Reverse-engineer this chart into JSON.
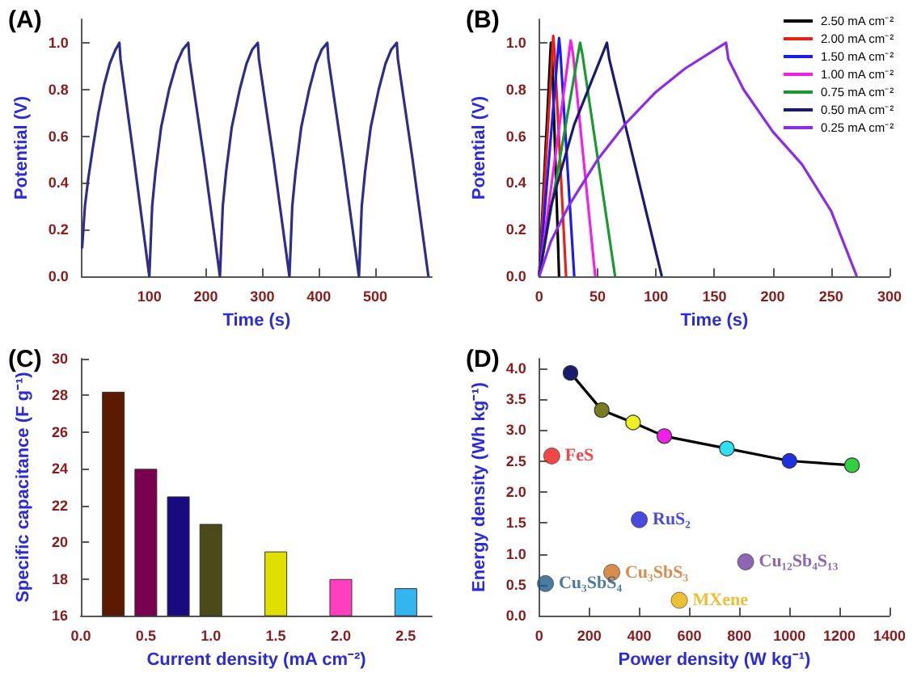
{
  "chart_data": [
    {
      "type": "line",
      "title": "(A)",
      "xlabel": "Time (s)",
      "ylabel": "Potential (V)",
      "xlim": [
        -20,
        600
      ],
      "xticks": [
        100,
        200,
        300,
        400,
        500
      ],
      "ylim": [
        0,
        1.1
      ],
      "yticks": [
        {
          "value": 0,
          "label": "0.0"
        },
        0.2,
        0.4,
        0.6,
        0.8,
        {
          "value": 1,
          "label": "1.0"
        }
      ],
      "marker": "none",
      "line_style": "solid",
      "series": [
        {
          "color": "#2e2e8a",
          "x": [
            -19,
            -14,
            -8,
            0,
            10,
            20,
            30,
            40,
            47,
            49,
            73,
            100,
            105,
            111,
            121,
            135,
            148,
            159,
            169,
            171,
            197,
            225,
            230,
            236,
            246,
            260,
            272,
            282,
            292,
            294,
            320,
            348,
            353,
            359,
            369,
            383,
            395,
            405,
            415,
            417,
            443,
            471,
            476,
            482,
            492,
            506,
            518,
            528,
            538,
            540,
            566,
            594
          ],
          "values": [
            0.12,
            0.3,
            0.42,
            0.55,
            0.7,
            0.82,
            0.91,
            0.97,
            1.0,
            0.93,
            0.5,
            0,
            0.3,
            0.45,
            0.64,
            0.8,
            0.91,
            0.97,
            1.0,
            0.93,
            0.5,
            0,
            0.3,
            0.45,
            0.64,
            0.8,
            0.91,
            0.97,
            1.0,
            0.93,
            0.5,
            0,
            0.3,
            0.45,
            0.64,
            0.8,
            0.91,
            0.97,
            1.0,
            0.93,
            0.5,
            0,
            0.3,
            0.45,
            0.64,
            0.8,
            0.91,
            0.97,
            1.0,
            0.93,
            0.5,
            0
          ]
        }
      ]
    },
    {
      "type": "line",
      "title": "(B)",
      "xlabel": "Time (s)",
      "ylabel": "Potential (V)",
      "xlim": [
        0,
        300
      ],
      "xticks": [
        0,
        50,
        100,
        150,
        200,
        250,
        300
      ],
      "ylim": [
        0,
        1.1
      ],
      "yticks": [
        {
          "value": 0,
          "label": "0.0"
        },
        0.2,
        0.4,
        0.6,
        0.8,
        {
          "value": 1,
          "label": "1.0"
        }
      ],
      "marker": "none",
      "line_style": "solid",
      "legend": "top right",
      "series": [
        {
          "name": "2.50 mA cm⁻²",
          "color": "#000000",
          "x": [
            0,
            10,
            11,
            17
          ],
          "values": [
            0,
            1.0,
            0.95,
            0
          ]
        },
        {
          "name": "2.00 mA cm⁻²",
          "color": "#e8201c",
          "x": [
            0,
            12,
            13,
            23
          ],
          "values": [
            0,
            1.03,
            0.97,
            0
          ]
        },
        {
          "name": "1.50 mA cm⁻²",
          "color": "#1c1cf0",
          "x": [
            0,
            17,
            18,
            30
          ],
          "values": [
            0,
            1.02,
            0.97,
            0
          ]
        },
        {
          "name": "1.00 mA cm⁻²",
          "color": "#f020e8",
          "x": [
            0,
            27,
            29,
            48
          ],
          "values": [
            0,
            1.01,
            0.95,
            0
          ]
        },
        {
          "name": "0.75 mA cm⁻²",
          "color": "#189a30",
          "x": [
            0,
            35,
            37,
            65
          ],
          "values": [
            0,
            1.0,
            0.95,
            0
          ]
        },
        {
          "name": "0.50 mA cm⁻²",
          "color": "#1a1a70",
          "x": [
            0,
            10,
            30,
            58,
            60,
            105
          ],
          "values": [
            0,
            0.3,
            0.65,
            1.0,
            0.93,
            0
          ]
        },
        {
          "name": "0.25 mA cm⁻²",
          "color": "#8c2ce8",
          "x": [
            0,
            10,
            25,
            50,
            75,
            100,
            125,
            160,
            162,
            175,
            200,
            225,
            250,
            272
          ],
          "values": [
            0,
            0.15,
            0.3,
            0.5,
            0.66,
            0.79,
            0.89,
            1.0,
            0.93,
            0.8,
            0.62,
            0.48,
            0.28,
            0
          ]
        }
      ]
    },
    {
      "type": "bar",
      "title": "(C)",
      "xlabel": "Current density (mA cm⁻²)",
      "ylabel": "Specific capacitance (F g⁻¹)",
      "xlim": [
        0,
        2.7
      ],
      "xticks": [
        {
          "value": 0,
          "label": "0.0"
        },
        0.5,
        {
          "value": 1,
          "label": "1.0"
        },
        1.5,
        {
          "value": 2,
          "label": "2.0"
        },
        2.5
      ],
      "ylim": [
        16,
        30
      ],
      "yticks": [
        16,
        18,
        20,
        22,
        24,
        26,
        28,
        30
      ],
      "x": [
        0.25,
        0.5,
        0.75,
        1.0,
        1.5,
        2.0,
        2.5
      ],
      "values": [
        28.2,
        24,
        22.5,
        21,
        19.5,
        18,
        17.5
      ],
      "colors": [
        "#5c1a00",
        "#7a0050",
        "#1a0a80",
        "#4a4a1a",
        "#e0e000",
        "#ff3fc0",
        "#33b5f0"
      ]
    },
    {
      "type": "scatter",
      "title": "(D)",
      "xlabel": "Power density (W kg⁻¹)",
      "ylabel": "Energy density (Wh kg⁻¹)",
      "xlim": [
        0,
        1400
      ],
      "xticks": [
        0,
        200,
        400,
        600,
        800,
        1000,
        1200,
        1400
      ],
      "ylim": [
        0,
        4.15
      ],
      "yticks": [
        {
          "value": 0,
          "label": "0.0"
        },
        0.5,
        {
          "value": 1,
          "label": "1.0"
        },
        1.5,
        {
          "value": 2,
          "label": "2.0"
        },
        2.5,
        {
          "value": 3,
          "label": "3.0"
        },
        3.5,
        {
          "value": 4,
          "label": "4.0"
        }
      ],
      "marker": "circle",
      "line_style": "solid",
      "series": [
        {
          "type": "line",
          "color": "#000000",
          "x": [
            125,
            250,
            375,
            500,
            750,
            1000,
            1250
          ],
          "values": [
            3.92,
            3.32,
            3.12,
            2.9,
            2.7,
            2.5,
            2.43
          ],
          "colors": [
            "#1a1a6e",
            "#7a7a20",
            "#f0f020",
            "#f020e8",
            "#30e0f0",
            "#2030e0",
            "#30d040"
          ]
        },
        {
          "name": "FeS",
          "color": "#f01818",
          "x": [
            50
          ],
          "values": [
            2.58
          ]
        },
        {
          "name": "RuS₂",
          "color": "#1c1cd8",
          "x": [
            400
          ],
          "values": [
            1.55
          ]
        },
        {
          "name": "Cu₃SbS₄",
          "color": "#1e5a8a",
          "x": [
            25
          ],
          "values": [
            0.52
          ]
        },
        {
          "name": "Cu₃SbS₃",
          "color": "#d07020",
          "x": [
            290
          ],
          "values": [
            0.7
          ]
        },
        {
          "name": "MXene",
          "color": "#e8b000",
          "x": [
            560
          ],
          "values": [
            0.25
          ]
        },
        {
          "name": "Cu₁₂Sb₄S₁₃",
          "color": "#7040a0",
          "x": [
            825
          ],
          "values": [
            0.87
          ]
        }
      ]
    }
  ]
}
